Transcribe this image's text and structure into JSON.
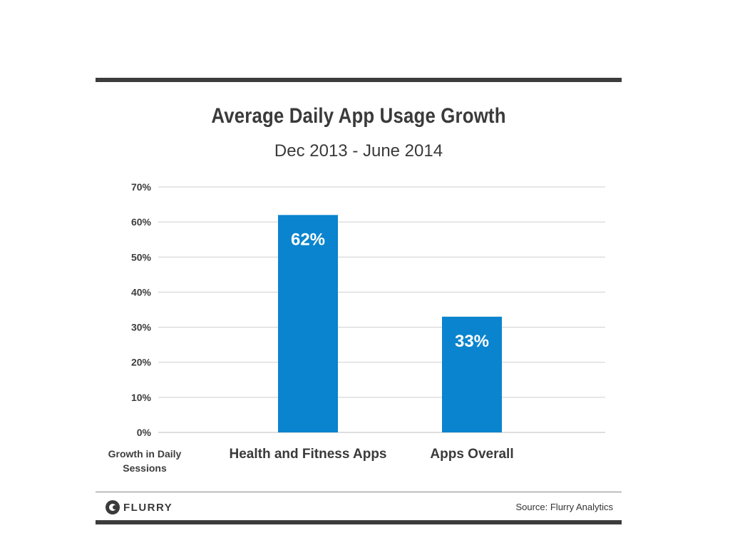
{
  "chart_data": {
    "type": "bar",
    "title": "Average Daily App Usage Growth",
    "subtitle": "Dec 2013 - June 2014",
    "categories": [
      "Health and Fitness Apps",
      "Apps Overall"
    ],
    "values": [
      62,
      33
    ],
    "data_labels": [
      "62%",
      "33%"
    ],
    "ylabel": "Growth in Daily Sessions",
    "xlabel": "",
    "ylim": [
      0,
      70
    ],
    "yticks": [
      "0%",
      "10%",
      "20%",
      "30%",
      "40%",
      "50%",
      "60%",
      "70%"
    ],
    "grid": true,
    "bar_color": "#0a84ce"
  },
  "footer": {
    "logo_text": "FLURRY",
    "source": "Source: Flurry Analytics"
  }
}
